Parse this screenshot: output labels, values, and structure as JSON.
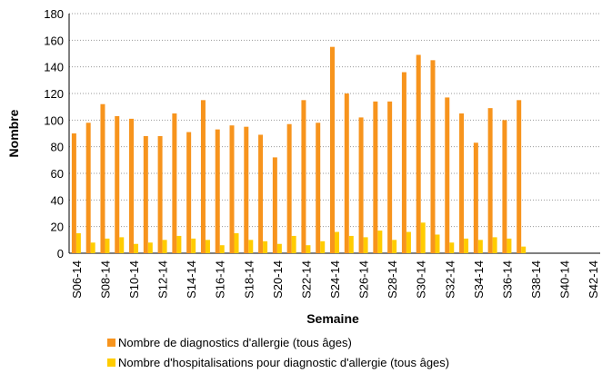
{
  "chart_data": {
    "type": "bar",
    "categories": [
      "S06-14",
      null,
      "S08-14",
      null,
      "S10-14",
      null,
      "S12-14",
      null,
      "S14-14",
      null,
      "S16-14",
      null,
      "S18-14",
      null,
      "S20-14",
      null,
      "S22-14",
      null,
      "S24-14",
      null,
      "S26-14",
      null,
      "S28-14",
      null,
      "S30-14",
      null,
      "S32-14",
      null,
      "S34-14",
      null,
      "S36-14",
      null,
      "S38-14",
      null,
      "S40-14",
      null,
      "S42-14"
    ],
    "series": [
      {
        "name": "Nombre de diagnostics d'allergie (tous âges)",
        "color": "#f7941d",
        "values": [
          90,
          98,
          112,
          103,
          101,
          88,
          88,
          105,
          91,
          115,
          93,
          96,
          95,
          89,
          72,
          97,
          115,
          98,
          155,
          120,
          102,
          114,
          114,
          136,
          149,
          145,
          117,
          105,
          83,
          109,
          100,
          115,
          null,
          null,
          null,
          null,
          null
        ]
      },
      {
        "name": "Nombre d'hospitalisations pour diagnostic d'allergie (tous âges)",
        "color": "#ffcc00",
        "values": [
          15,
          8,
          11,
          12,
          7,
          8,
          10,
          13,
          11,
          10,
          6,
          15,
          10,
          9,
          7,
          13,
          6,
          9,
          16,
          13,
          12,
          17,
          10,
          16,
          23,
          14,
          8,
          11,
          10,
          12,
          11,
          5,
          null,
          null,
          null,
          null,
          null
        ]
      }
    ],
    "ylim": [
      0,
      180
    ],
    "yticks": [
      0,
      20,
      40,
      60,
      80,
      100,
      120,
      140,
      160,
      180
    ],
    "x_label": "Semaine",
    "y_label": "Nombre",
    "grid": true
  }
}
